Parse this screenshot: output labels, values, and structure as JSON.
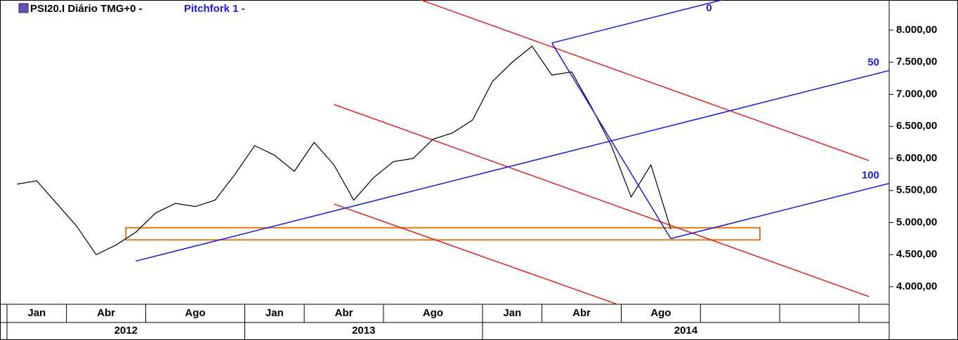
{
  "chart_data": {
    "type": "line",
    "title": "PSI20.I Diário TMG+0  -",
    "subtitle": "Pitchfork 1 -",
    "x": [
      "2012-01",
      "2012-02",
      "2012-03",
      "2012-04",
      "2012-05",
      "2012-06",
      "2012-07",
      "2012-08",
      "2012-09",
      "2012-10",
      "2012-11",
      "2012-12",
      "2013-01",
      "2013-02",
      "2013-03",
      "2013-04",
      "2013-05",
      "2013-06",
      "2013-07",
      "2013-08",
      "2013-09",
      "2013-10",
      "2013-11",
      "2013-12",
      "2014-01",
      "2014-02",
      "2014-03",
      "2014-04",
      "2014-05",
      "2014-06",
      "2014-07",
      "2014-08",
      "2014-09",
      "2014-10"
    ],
    "values": [
      5600,
      5650,
      5300,
      4950,
      4500,
      4650,
      4850,
      5150,
      5300,
      5250,
      5350,
      5750,
      6200,
      6050,
      5800,
      6250,
      5900,
      5350,
      5700,
      5950,
      6000,
      6300,
      6400,
      6600,
      7200,
      7500,
      7750,
      7300,
      7350,
      6800,
      6200,
      5400,
      5900,
      4900
    ],
    "color": "#000000",
    "xlim": [
      "2012-01",
      "2015-08"
    ],
    "xticks": [
      {
        "value": "2012-01",
        "label": "Jan"
      },
      {
        "value": "2012-04",
        "label": "Abr"
      },
      {
        "value": "2012-08",
        "label": "Ago"
      },
      {
        "value": "2013-01",
        "label": "Jan"
      },
      {
        "value": "2013-04",
        "label": "Abr"
      },
      {
        "value": "2013-08",
        "label": "Ago"
      },
      {
        "value": "2014-01",
        "label": "Jan"
      },
      {
        "value": "2014-04",
        "label": "Abr"
      },
      {
        "value": "2014-08",
        "label": "Ago"
      },
      {
        "value": "2014-12",
        "label": null
      },
      {
        "value": "2015-04",
        "label": null
      },
      {
        "value": "2015-08",
        "label": null
      }
    ],
    "year_labels": [
      "2012",
      "2013",
      "2014"
    ],
    "ylim": [
      3727,
      8470
    ],
    "yticks": [
      {
        "value": 4000,
        "label": "4.000,00"
      },
      {
        "value": 4500,
        "label": "4.500,00"
      },
      {
        "value": 5000,
        "label": "5.000,00"
      },
      {
        "value": 5500,
        "label": "5.500,00"
      },
      {
        "value": 6000,
        "label": "6.000,00"
      },
      {
        "value": 6500,
        "label": "6.500,00"
      },
      {
        "value": 7000,
        "label": "7.000,00"
      },
      {
        "value": 7500,
        "label": "7.500,00"
      },
      {
        "value": 8000,
        "label": "8.000,00"
      }
    ],
    "pitchfork": {
      "color": "#1a1ad8",
      "pivots": [
        [
          "2012-07",
          4400
        ],
        [
          "2014-04",
          7800
        ],
        [
          "2014-10",
          4750
        ]
      ],
      "labels": [
        "0",
        "50",
        "100"
      ]
    },
    "red_lines": {
      "color": "#e0201b",
      "lines": [
        [
          [
            "2013-09",
            8514
          ],
          [
            "2015-08",
            5967
          ]
        ],
        [
          [
            "2013-05",
            6842
          ],
          [
            "2015-08",
            3847
          ]
        ],
        [
          [
            "2013-05",
            5290
          ],
          [
            "2014-08",
            3650
          ]
        ]
      ]
    },
    "zone": {
      "color": "#e07b20",
      "x": [
        "2012-07",
        "2015-03"
      ],
      "y": [
        4730,
        4920
      ]
    }
  }
}
